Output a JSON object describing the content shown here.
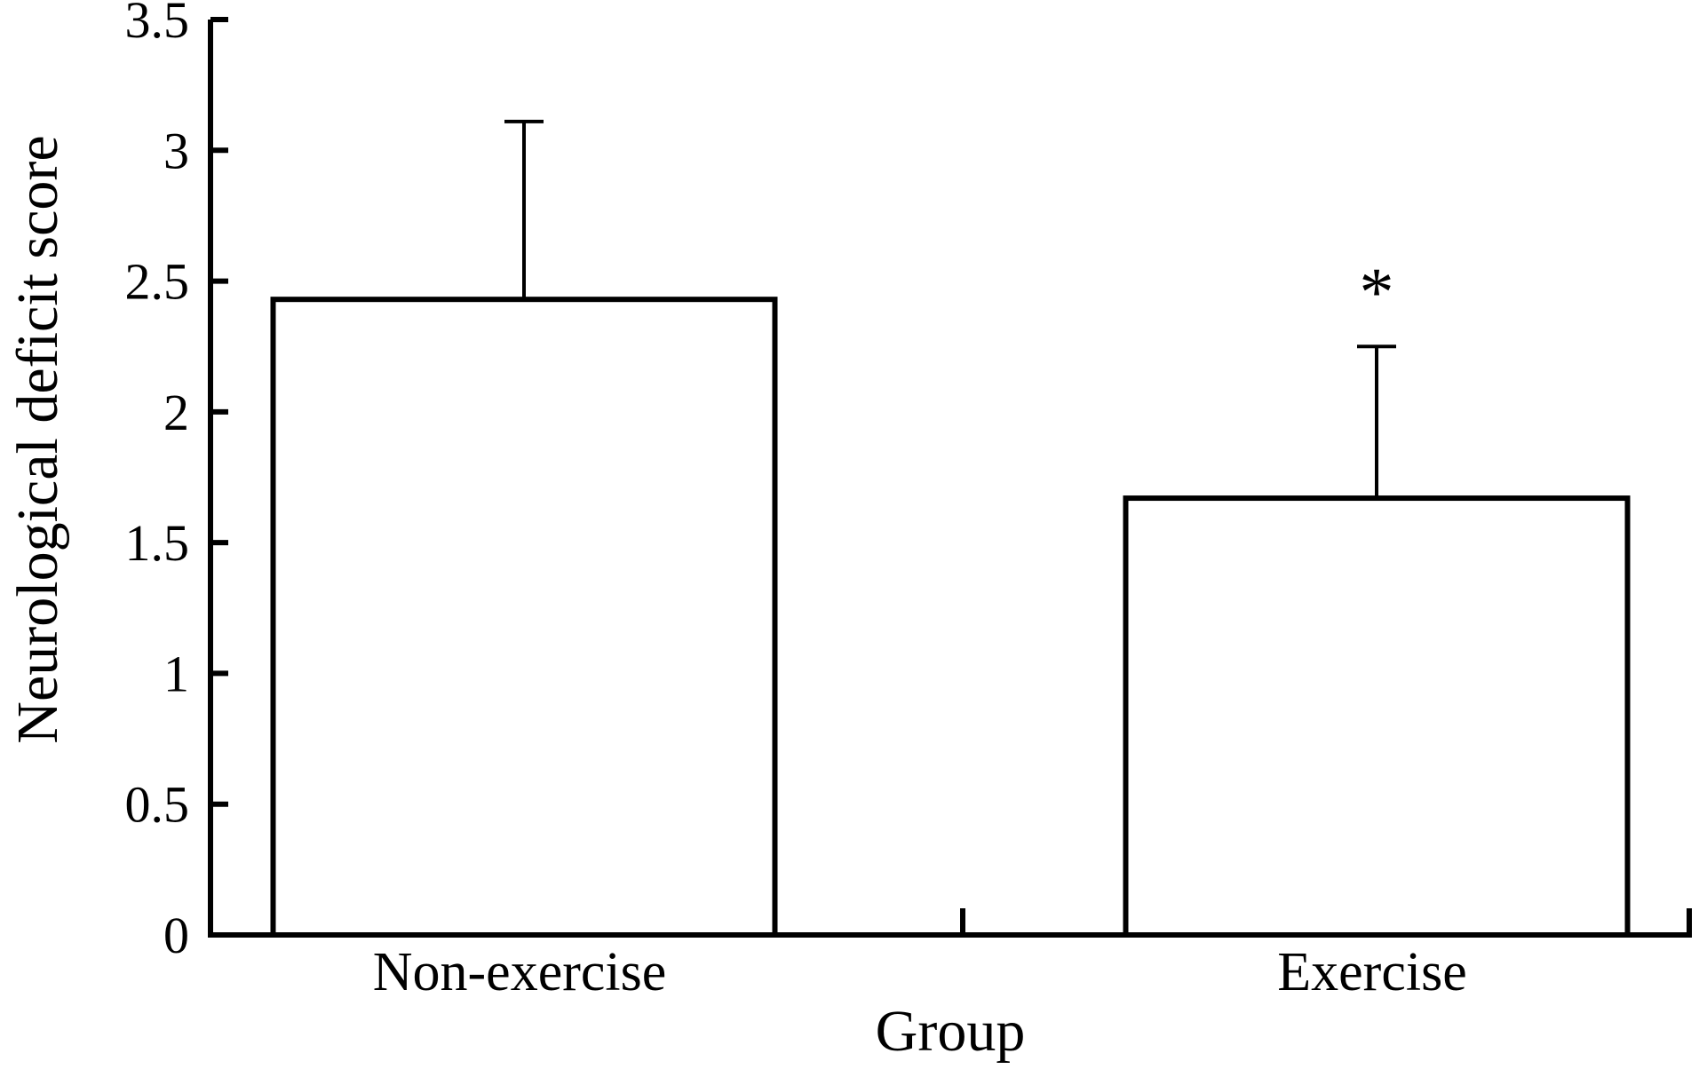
{
  "chart_data": {
    "type": "bar",
    "title": "",
    "xlabel": "Group",
    "ylabel": "Neurological deficit score",
    "categories": [
      "Non-exercise",
      "Exercise"
    ],
    "values": [
      2.43,
      1.67
    ],
    "error_upper": [
      3.11,
      2.25
    ],
    "significance_markers": [
      "",
      "*"
    ],
    "ylim": [
      0,
      3.5
    ],
    "yticks": [
      0,
      0.5,
      1,
      1.5,
      2,
      2.5,
      3,
      3.5
    ],
    "ytick_labels": [
      "0",
      "0.5",
      "1",
      "1.5",
      "2",
      "2.5",
      "3",
      "3.5"
    ],
    "grid": false,
    "legend": "none",
    "bar_fill": "#ffffff",
    "bar_stroke": "#000000"
  }
}
